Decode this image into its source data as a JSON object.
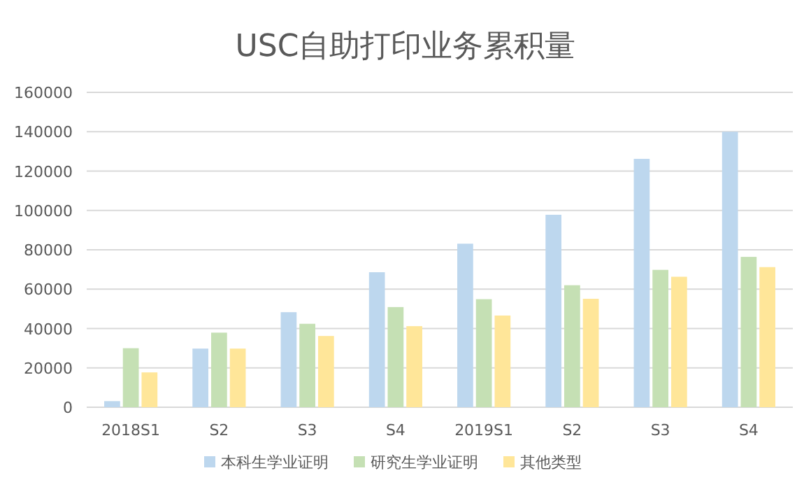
{
  "chart_data": {
    "type": "bar",
    "title": "USC自助打印业务累积量",
    "categories": [
      "2018S1",
      "S2",
      "S3",
      "S4",
      "2019S1",
      "S2",
      "S3",
      "S4"
    ],
    "series": [
      {
        "name": "本科生学业证明",
        "color": "#bdd7ee",
        "values": [
          3100,
          29800,
          48300,
          68600,
          83100,
          97800,
          126200,
          140000
        ]
      },
      {
        "name": "研究生学业证明",
        "color": "#c5e0b4",
        "values": [
          30000,
          37900,
          42400,
          50900,
          54900,
          62000,
          69800,
          76400
        ]
      },
      {
        "name": "其他类型",
        "color": "#ffe699",
        "values": [
          17700,
          29800,
          36200,
          41200,
          46600,
          55100,
          66300,
          71200
        ]
      }
    ],
    "ylim": [
      0,
      160000
    ],
    "yticks": [
      0,
      20000,
      40000,
      60000,
      80000,
      100000,
      120000,
      140000,
      160000
    ],
    "grid": "y",
    "legend": "bottom"
  }
}
